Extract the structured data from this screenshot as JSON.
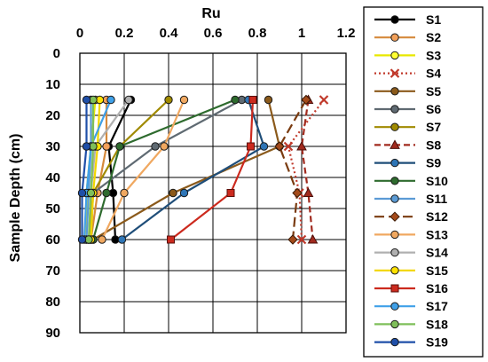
{
  "chart_data": {
    "type": "line",
    "x_title": "Ru",
    "y_title": "Sample Depth (cm)",
    "xlim": [
      0,
      1.2
    ],
    "ylim": [
      0,
      90
    ],
    "y_inverted": true,
    "x_axis_position": "top",
    "x_ticks": [
      {
        "value": 0,
        "label": "0"
      },
      {
        "value": 0.2,
        "label": "0.2"
      },
      {
        "value": 0.4,
        "label": "0.4"
      },
      {
        "value": 0.6,
        "label": "0.6"
      },
      {
        "value": 0.8,
        "label": "0.8"
      },
      {
        "value": 1.0,
        "label": "1"
      },
      {
        "value": 1.2,
        "label": "1.2"
      }
    ],
    "y_ticks": [
      {
        "value": 0,
        "label": "0"
      },
      {
        "value": 10,
        "label": "10"
      },
      {
        "value": 20,
        "label": "20"
      },
      {
        "value": 30,
        "label": "30"
      },
      {
        "value": 40,
        "label": "40"
      },
      {
        "value": 50,
        "label": "50"
      },
      {
        "value": 60,
        "label": "60"
      },
      {
        "value": 70,
        "label": "70"
      },
      {
        "value": 80,
        "label": "80"
      },
      {
        "value": 90,
        "label": "90"
      }
    ],
    "grid": true,
    "legend_position": "right",
    "series": [
      {
        "name": "S1",
        "color": "#000000",
        "marker": "circle",
        "marker_fill": "#000000",
        "dash": "solid",
        "x": [
          0.23,
          0.13,
          0.15,
          0.16
        ],
        "y": [
          15,
          30,
          45,
          60
        ]
      },
      {
        "name": "S2",
        "color": "#d68a3c",
        "marker": "circle",
        "marker_fill": "#f2a05a",
        "dash": "solid",
        "x": [
          0.12,
          0.12,
          0.08,
          0.05
        ],
        "y": [
          15,
          30,
          45,
          60
        ]
      },
      {
        "name": "S3",
        "color": "#e8e800",
        "marker": "circle",
        "marker_fill": "#ffff33",
        "dash": "solid",
        "x": [
          0.07,
          0.05,
          0.03,
          0.03
        ],
        "y": [
          15,
          30,
          45,
          60
        ]
      },
      {
        "name": "S4",
        "color": "#c0392b",
        "marker": "x",
        "marker_fill": "none",
        "dash": "dot",
        "x": [
          1.1,
          0.94,
          0.99,
          1.0
        ],
        "y": [
          15,
          30,
          45,
          60
        ]
      },
      {
        "name": "S5",
        "color": "#8b5a1b",
        "marker": "circle",
        "marker_fill": "#8b5a1b",
        "dash": "solid",
        "x": [
          0.85,
          0.9,
          0.42,
          0.06
        ],
        "y": [
          15,
          30,
          45,
          60
        ]
      },
      {
        "name": "S6",
        "color": "#5f6a72",
        "marker": "circle",
        "marker_fill": "#5f6a72",
        "dash": "solid",
        "x": [
          0.73,
          0.34,
          0.06,
          0.05
        ],
        "y": [
          15,
          30,
          45,
          60
        ]
      },
      {
        "name": "S7",
        "color": "#a08a00",
        "marker": "circle",
        "marker_fill": "#a08a00",
        "dash": "solid",
        "x": [
          0.4,
          0.18,
          0.06,
          0.04
        ],
        "y": [
          15,
          30,
          45,
          60
        ]
      },
      {
        "name": "S8",
        "color": "#a12a1e",
        "marker": "triangle",
        "marker_fill": "#a12a1e",
        "dash": "dash",
        "x": [
          1.03,
          1.0,
          1.03,
          1.05
        ],
        "y": [
          15,
          30,
          45,
          60
        ]
      },
      {
        "name": "S9",
        "color": "#1f4e79",
        "marker": "circle",
        "marker_fill": "#2e75b6",
        "dash": "solid",
        "x": [
          0.76,
          0.83,
          0.47,
          0.19
        ],
        "y": [
          15,
          30,
          45,
          60
        ]
      },
      {
        "name": "S10",
        "color": "#2e6b2e",
        "marker": "circle",
        "marker_fill": "#2e6b2e",
        "dash": "solid",
        "x": [
          0.7,
          0.18,
          0.12,
          0.06
        ],
        "y": [
          15,
          30,
          45,
          60
        ]
      },
      {
        "name": "S11",
        "color": "#5b9bd5",
        "marker": "circle",
        "marker_fill": "#5b9bd5",
        "dash": "solid",
        "x": [
          0.05,
          0.05,
          0.04,
          0.03
        ],
        "y": [
          15,
          30,
          45,
          60
        ]
      },
      {
        "name": "S12",
        "color": "#7a3b10",
        "marker": "diamond",
        "marker_fill": "#a34a1a",
        "dash": "longdash",
        "x": [
          1.02,
          0.9,
          0.98,
          0.96
        ],
        "y": [
          15,
          30,
          45,
          60
        ]
      },
      {
        "name": "S13",
        "color": "#f0a860",
        "marker": "circle",
        "marker_fill": "#f0a860",
        "dash": "solid",
        "x": [
          0.47,
          0.38,
          0.2,
          0.1
        ],
        "y": [
          15,
          30,
          45,
          60
        ]
      },
      {
        "name": "S14",
        "color": "#b0b0b0",
        "marker": "circle",
        "marker_fill": "#b0b0b0",
        "dash": "solid",
        "x": [
          0.22,
          0.07,
          0.05,
          0.04
        ],
        "y": [
          15,
          30,
          45,
          60
        ]
      },
      {
        "name": "S15",
        "color": "#f2d600",
        "marker": "circle",
        "marker_fill": "#ffe100",
        "dash": "solid",
        "x": [
          0.09,
          0.08,
          0.06,
          0.05
        ],
        "y": [
          15,
          30,
          45,
          60
        ]
      },
      {
        "name": "S16",
        "color": "#cc2a1e",
        "marker": "square",
        "marker_fill": "#cc2a1e",
        "dash": "solid",
        "x": [
          0.78,
          0.77,
          0.68,
          0.41
        ],
        "y": [
          15,
          30,
          45,
          60
        ]
      },
      {
        "name": "S17",
        "color": "#3fa0e8",
        "marker": "circle",
        "marker_fill": "#3fa0e8",
        "dash": "solid",
        "x": [
          0.14,
          0.05,
          0.03,
          0.02
        ],
        "y": [
          15,
          30,
          45,
          60
        ]
      },
      {
        "name": "S18",
        "color": "#7fbf5a",
        "marker": "circle",
        "marker_fill": "#7fbf5a",
        "dash": "solid",
        "x": [
          0.06,
          0.06,
          0.05,
          0.04
        ],
        "y": [
          15,
          30,
          45,
          60
        ]
      },
      {
        "name": "S19",
        "color": "#1f4fa8",
        "marker": "circle",
        "marker_fill": "#1f4fa8",
        "dash": "solid",
        "x": [
          0.03,
          0.03,
          0.01,
          0.01
        ],
        "y": [
          15,
          30,
          45,
          60
        ]
      }
    ]
  }
}
